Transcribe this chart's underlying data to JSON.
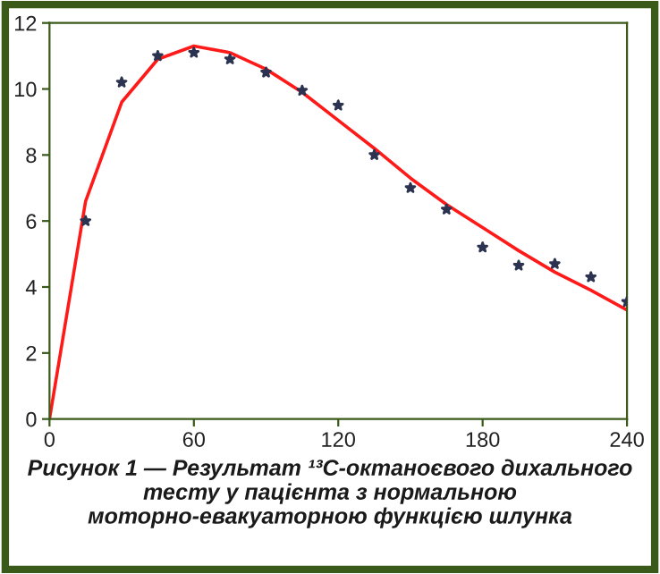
{
  "chart_data": {
    "type": "line",
    "annotations": [
      "Рисунок 1 — Результат ¹³С-октаноєвого дихального тесту у пацієнта з нормальною моторно-евакуаторною функцією шлунка"
    ],
    "series": [
      {
        "type": "scatter",
        "color": "#2b3350",
        "marker": "star",
        "x": [
          15,
          30,
          45,
          60,
          75,
          90,
          105,
          120,
          135,
          150,
          165,
          180,
          195,
          210,
          225,
          240
        ],
        "values": [
          6.0,
          10.2,
          11.0,
          11.1,
          10.9,
          10.5,
          9.95,
          9.5,
          8.0,
          7.0,
          6.35,
          5.2,
          4.65,
          4.7,
          4.3,
          3.55
        ]
      },
      {
        "color": "#ff1a1a",
        "x": [
          0,
          15,
          30,
          45,
          60,
          75,
          90,
          105,
          120,
          135,
          150,
          165,
          180,
          195,
          210,
          225,
          240
        ],
        "values": [
          0,
          6.6,
          9.6,
          10.9,
          11.3,
          11.1,
          10.6,
          9.9,
          9.05,
          8.2,
          7.3,
          6.5,
          5.8,
          5.1,
          4.45,
          3.9,
          3.3
        ]
      }
    ],
    "xlim": [
      0,
      240
    ],
    "xticks": [
      0,
      60,
      120,
      180,
      240
    ],
    "ylim": [
      0,
      12
    ],
    "yticks": [
      0,
      2,
      4,
      6,
      8,
      10,
      12
    ],
    "grid": false,
    "legend": false
  }
}
